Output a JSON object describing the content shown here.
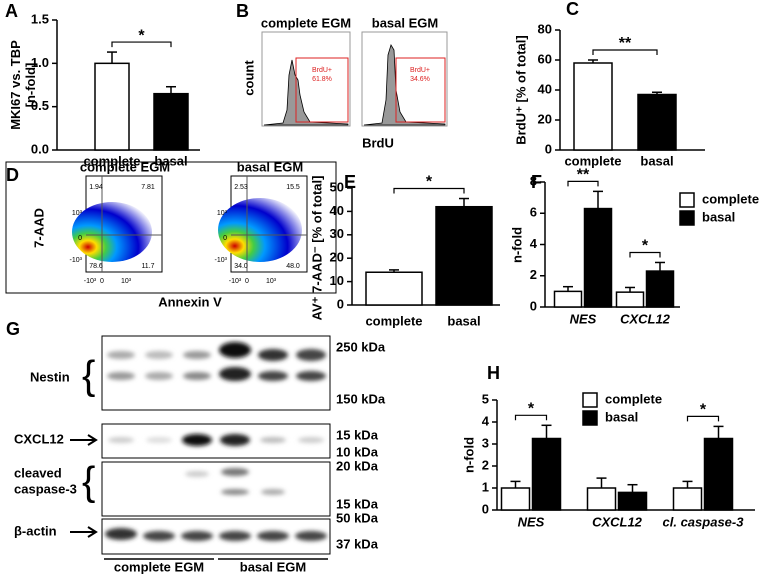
{
  "chart_data": [
    {
      "type": "bar",
      "panel": "A",
      "ylabel": [
        "MKI67 vs. TBP",
        "[n-fold]"
      ],
      "categories": [
        "complete",
        "basal"
      ],
      "values": [
        1.0,
        0.65
      ],
      "errors": [
        0.13,
        0.08
      ],
      "colors": [
        "#ffffff",
        "#000000"
      ],
      "significance": "*",
      "ylim": [
        0,
        1.5
      ],
      "yticks": [
        {
          "value": 0,
          "label": "0.0"
        },
        {
          "value": 0.5,
          "label": "0.5"
        },
        {
          "value": 1,
          "label": "1.0"
        },
        {
          "value": 1.5,
          "label": "1.5"
        }
      ]
    },
    {
      "type": "bar",
      "panel": "C",
      "ylabel": [
        "BrdU⁺ [% of total]"
      ],
      "categories": [
        "complete",
        "basal"
      ],
      "values": [
        58,
        37
      ],
      "errors": [
        2,
        1.5
      ],
      "colors": [
        "#ffffff",
        "#000000"
      ],
      "significance": "**",
      "ylim": [
        0,
        80
      ],
      "yticks": [
        0,
        20,
        40,
        60,
        80
      ]
    },
    {
      "type": "bar",
      "panel": "E",
      "ylabel": [
        "AV⁺ 7-AAD⁻ [% of total]"
      ],
      "categories": [
        "complete",
        "basal"
      ],
      "values": [
        14,
        42
      ],
      "errors": [
        1,
        3.5
      ],
      "colors": [
        "#ffffff",
        "#000000"
      ],
      "significance": "*",
      "ylim": [
        0,
        50
      ],
      "yticks": [
        0,
        10,
        20,
        30,
        40,
        50
      ]
    },
    {
      "type": "bar",
      "panel": "F",
      "ylabel": [
        "n-fold"
      ],
      "categories": [
        "NES",
        "CXCL12"
      ],
      "series": [
        {
          "name": "complete",
          "color": "#ffffff",
          "values": [
            1.0,
            0.95
          ],
          "errors": [
            0.3,
            0.3
          ]
        },
        {
          "name": "basal",
          "color": "#000000",
          "values": [
            6.3,
            2.3
          ],
          "errors": [
            1.1,
            0.55
          ]
        }
      ],
      "significance": [
        "**",
        "*"
      ],
      "ylim": [
        0,
        8
      ],
      "yticks": [
        0,
        2,
        4,
        6,
        8
      ]
    },
    {
      "type": "bar",
      "panel": "H",
      "ylabel": [
        "n-fold"
      ],
      "categories": [
        "NES",
        "CXCL12",
        "cl. caspase-3"
      ],
      "series": [
        {
          "name": "complete",
          "color": "#ffffff",
          "values": [
            1.0,
            1.0,
            1.0
          ],
          "errors": [
            0.3,
            0.45,
            0.3
          ]
        },
        {
          "name": "basal",
          "color": "#000000",
          "values": [
            3.25,
            0.8,
            3.25
          ],
          "errors": [
            0.6,
            0.35,
            0.55
          ]
        }
      ],
      "significance": [
        "*",
        null,
        "*"
      ],
      "ylim": [
        0,
        5
      ],
      "yticks": [
        0,
        1,
        2,
        3,
        4,
        5
      ]
    }
  ],
  "flow_cytometry": {
    "panel": "B",
    "samples": [
      "complete EGM",
      "basal EGM"
    ],
    "ylabel": "count",
    "xlabel": "BrdU",
    "gate": "BrdU+",
    "gate_values": [
      "61.8%",
      "34.6%"
    ]
  },
  "annexin": {
    "panel": "D",
    "samples": [
      "complete EGM",
      "basal EGM"
    ],
    "ylabel": "7-AAD",
    "xlabel": "Annexin V",
    "quadrants": [
      [
        "1.94",
        "7.81",
        "78.6",
        "11.7"
      ],
      [
        "2.53",
        "15.5",
        "34.0",
        "48.0"
      ]
    ],
    "axis_ticks": [
      "-10³",
      "0",
      "10³"
    ]
  },
  "western_blot": {
    "panel": "G",
    "labels": [
      "Nestin",
      "CXCL12",
      [
        "cleaved",
        "caspase-3"
      ],
      "β-actin"
    ],
    "markers": [
      "250 kDa",
      "150 kDa",
      "15 kDa",
      "10 kDa",
      "20 kDa",
      "15 kDa",
      "50 kDa",
      "37 kDa"
    ],
    "groups": [
      "complete EGM",
      "basal EGM"
    ]
  }
}
